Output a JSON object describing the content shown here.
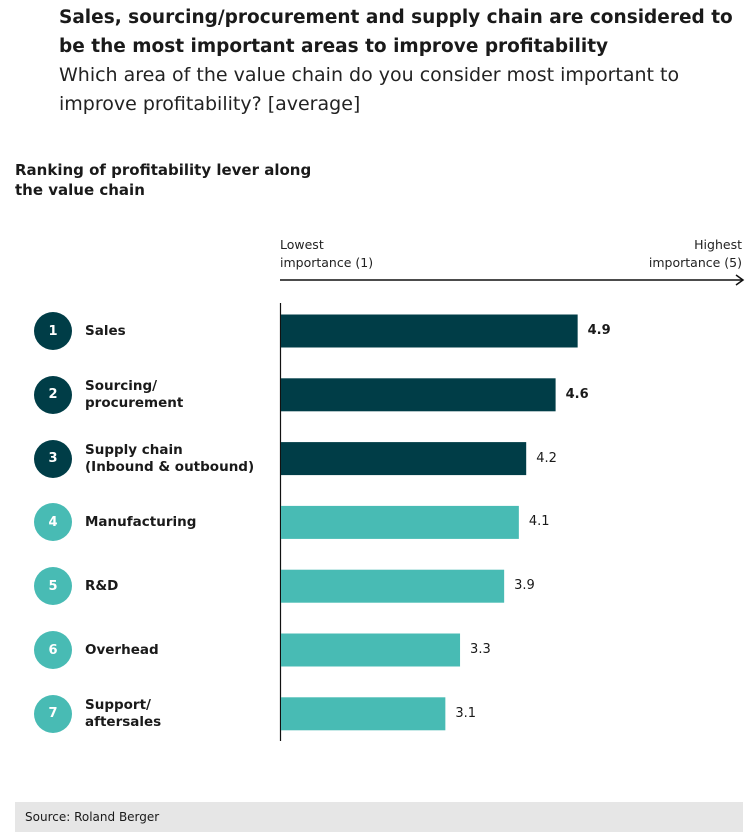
{
  "headline": {
    "title": "Sales, sourcing/procurement and supply chain are considered to be the most important areas to improve profitability",
    "question": "Which area of the value chain do you consider most important to improve profitability? [average]"
  },
  "subtitle": "Ranking of profitability lever along the value chain",
  "axis": {
    "low_label": "Lowest\nimportance (1)",
    "high_label": "Highest\nimportance (5)"
  },
  "colors": {
    "dark": "#003d47",
    "light": "#48bbb4"
  },
  "chart_data": {
    "type": "bar",
    "orientation": "horizontal",
    "title": "Ranking of profitability lever along the value chain",
    "xlim": [
      1,
      5
    ],
    "categories": [
      {
        "rank": "1",
        "label": "Sales",
        "value": 4.9,
        "tone": "dark"
      },
      {
        "rank": "2",
        "label": "Sourcing/\nprocurement",
        "value": 4.6,
        "tone": "dark"
      },
      {
        "rank": "3",
        "label": "Supply chain\n(Inbound & outbound)",
        "value": 4.2,
        "tone": "dark"
      },
      {
        "rank": "4",
        "label": "Manufacturing",
        "value": 4.1,
        "tone": "light"
      },
      {
        "rank": "5",
        "label": "R&D",
        "value": 3.9,
        "tone": "light"
      },
      {
        "rank": "6",
        "label": "Overhead",
        "value": 3.3,
        "tone": "light"
      },
      {
        "rank": "7",
        "label": "Support/\naftersales",
        "value": 3.1,
        "tone": "light"
      }
    ],
    "value_labels": [
      "4.9",
      "4.6",
      "4.2",
      "4.1",
      "3.9",
      "3.3",
      "3.1"
    ]
  },
  "footer": {
    "source": "Source: Roland Berger"
  }
}
